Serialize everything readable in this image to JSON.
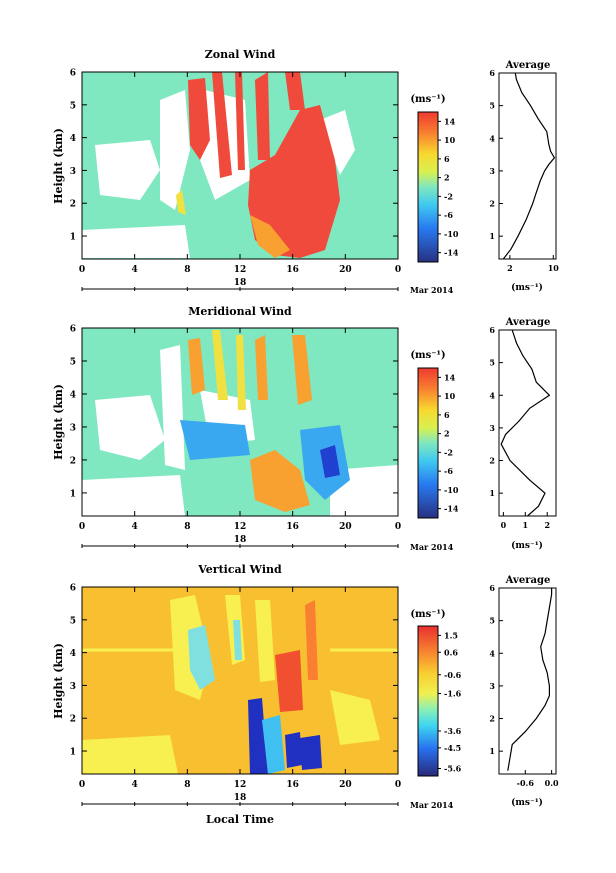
{
  "chart_data": [
    {
      "type": "heatmap",
      "title": "Zonal Wind",
      "ylabel": "Height (km)",
      "xlabel": "",
      "date_label": "18",
      "month_label": "Mar 2014",
      "x_ticks": [
        "0",
        "4",
        "8",
        "12",
        "16",
        "20",
        "0"
      ],
      "y_ticks": [
        "1",
        "2",
        "3",
        "4",
        "5",
        "6"
      ],
      "xlim": [
        0,
        24
      ],
      "ylim": [
        0.3,
        6.0
      ],
      "colorbar": {
        "unit": "(ms⁻¹)",
        "ticks": [
          "14",
          "10",
          "6",
          "2",
          "-2",
          "-6",
          "-10",
          "-14"
        ],
        "range": [
          -16,
          16
        ]
      },
      "colors": {
        "background": "#7fe8c0",
        "strong_positive": "#f04a3c",
        "medium_positive": "#f8a030",
        "weak_positive": "#f0e040"
      },
      "profile": {
        "title": "Average",
        "xlabel": "(ms⁻¹)",
        "x_ticks": [
          "2",
          "10"
        ],
        "xlim": [
          0,
          10.5
        ],
        "y_ticks": [
          "1",
          "2",
          "3",
          "4",
          "5",
          "6"
        ],
        "heights": [
          0.3,
          0.6,
          1.0,
          1.5,
          2.0,
          2.3,
          2.7,
          3.0,
          3.2,
          3.4,
          3.6,
          3.8,
          4.2,
          4.6,
          5.0,
          5.4,
          5.8,
          6.0
        ],
        "values": [
          0.8,
          2.2,
          3.5,
          5.0,
          6.2,
          6.8,
          7.6,
          8.4,
          9.2,
          10.2,
          9.5,
          9.2,
          8.8,
          7.2,
          5.8,
          4.2,
          3.2,
          3.0
        ]
      }
    },
    {
      "type": "heatmap",
      "title": "Meridional Wind",
      "ylabel": "Height (km)",
      "xlabel": "",
      "date_label": "18",
      "month_label": "Mar 2014",
      "x_ticks": [
        "0",
        "4",
        "8",
        "12",
        "16",
        "20",
        "0"
      ],
      "y_ticks": [
        "1",
        "2",
        "3",
        "4",
        "5",
        "6"
      ],
      "xlim": [
        0,
        24
      ],
      "ylim": [
        0.3,
        6.0
      ],
      "colorbar": {
        "unit": "(ms⁻¹)",
        "ticks": [
          "14",
          "10",
          "6",
          "2",
          "-2",
          "-6",
          "-10",
          "-14"
        ],
        "range": [
          -16,
          16
        ]
      },
      "colors": {
        "background": "#7fe8c0",
        "positive": "#f8a030",
        "negative": "#3aa8f0",
        "strong_negative": "#2040d0"
      },
      "profile": {
        "title": "Average",
        "xlabel": "(ms⁻¹)",
        "x_ticks": [
          "0",
          "1",
          "2"
        ],
        "xlim": [
          -0.2,
          2.4
        ],
        "y_ticks": [
          "1",
          "2",
          "3",
          "4",
          "5",
          "6"
        ],
        "heights": [
          0.3,
          0.6,
          1.0,
          1.4,
          2.0,
          2.5,
          2.8,
          3.2,
          3.6,
          4.0,
          4.4,
          4.8,
          5.2,
          5.6,
          6.0
        ],
        "values": [
          1.1,
          1.6,
          1.9,
          1.2,
          0.3,
          -0.1,
          0.1,
          0.7,
          1.2,
          2.1,
          1.5,
          1.3,
          0.9,
          0.6,
          0.4
        ]
      }
    },
    {
      "type": "heatmap",
      "title": "Vertical Wind",
      "ylabel": "Height (km)",
      "xlabel": "Local Time",
      "date_label": "18",
      "month_label": "Mar 2014",
      "x_ticks": [
        "0",
        "4",
        "8",
        "12",
        "16",
        "20",
        "0"
      ],
      "y_ticks": [
        "1",
        "2",
        "3",
        "4",
        "5",
        "6"
      ],
      "xlim": [
        0,
        24
      ],
      "ylim": [
        0.3,
        6.0
      ],
      "colorbar": {
        "unit": "(ms⁻¹)",
        "ticks": [
          "1.5",
          "0.6",
          "-0.6",
          "-1.6",
          "-3.6",
          "-4.5",
          "-5.6"
        ],
        "range": [
          -6.0,
          2.0
        ]
      },
      "colors": {
        "background": "#f8c030",
        "positive": "#f05030",
        "negative": "#2030c0",
        "weak_negative": "#80e0e0"
      },
      "profile": {
        "title": "Average",
        "xlabel": "(ms⁻¹)",
        "x_ticks": [
          "-0.6",
          "0.0"
        ],
        "xlim": [
          -1.2,
          0.1
        ],
        "y_ticks": [
          "1",
          "2",
          "3",
          "4",
          "5",
          "6"
        ],
        "heights": [
          0.4,
          0.8,
          1.2,
          1.6,
          2.0,
          2.4,
          2.7,
          3.0,
          3.4,
          3.8,
          4.2,
          4.6,
          5.0,
          5.4,
          5.8,
          6.0
        ],
        "values": [
          -1.0,
          -0.95,
          -0.9,
          -0.6,
          -0.35,
          -0.15,
          -0.05,
          -0.05,
          -0.1,
          -0.2,
          -0.25,
          -0.15,
          -0.1,
          -0.05,
          0.0,
          0.0
        ]
      }
    }
  ]
}
